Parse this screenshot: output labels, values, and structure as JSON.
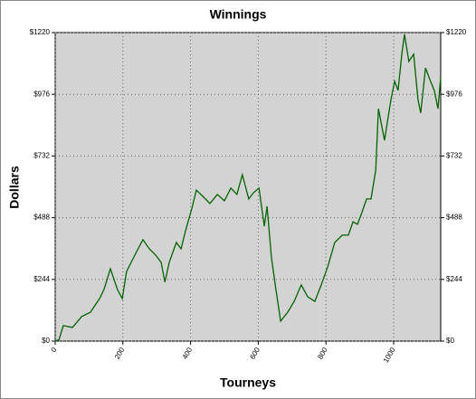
{
  "chart_data": {
    "type": "line",
    "title": "Winnings",
    "x_label": "Tourneys",
    "y_label": "Dollars",
    "xlim": [
      0,
      1139
    ],
    "ylim": [
      0,
      1220
    ],
    "xticks": [
      0,
      200,
      400,
      600,
      800,
      1000
    ],
    "yticks": [
      {
        "value": 0,
        "label": "$0"
      },
      {
        "value": 244,
        "label": "$244"
      },
      {
        "value": 488,
        "label": "$488"
      },
      {
        "value": 732,
        "label": "$732"
      },
      {
        "value": 976,
        "label": "$976"
      },
      {
        "value": 1220,
        "label": "$1220"
      }
    ],
    "grid": true,
    "color": "#006400",
    "x": [
      0,
      11,
      24,
      51,
      78,
      104,
      131,
      144,
      163,
      184,
      198,
      211,
      238,
      259,
      278,
      297,
      313,
      324,
      337,
      358,
      372,
      385,
      404,
      417,
      439,
      457,
      479,
      500,
      519,
      537,
      553,
      572,
      586,
      602,
      618,
      626,
      639,
      652,
      666,
      687,
      706,
      727,
      746,
      767,
      786,
      805,
      826,
      848,
      866,
      880,
      893,
      906,
      920,
      933,
      947,
      955,
      973,
      992,
      1003,
      1013,
      1024,
      1032,
      1045,
      1059,
      1072,
      1080,
      1094,
      1107,
      1120,
      1131,
      1139
    ],
    "values": [
      0,
      5,
      61,
      54,
      97,
      114,
      168,
      204,
      286,
      204,
      168,
      275,
      347,
      401,
      365,
      340,
      311,
      233,
      311,
      390,
      365,
      436,
      526,
      597,
      569,
      544,
      580,
      555,
      605,
      580,
      658,
      562,
      587,
      605,
      454,
      533,
      329,
      204,
      79,
      114,
      157,
      222,
      175,
      157,
      222,
      293,
      390,
      419,
      419,
      472,
      462,
      508,
      562,
      562,
      676,
      919,
      794,
      955,
      1027,
      991,
      1134,
      1213,
      1106,
      1134,
      955,
      902,
      1080,
      1034,
      991,
      919,
      1045
    ]
  }
}
